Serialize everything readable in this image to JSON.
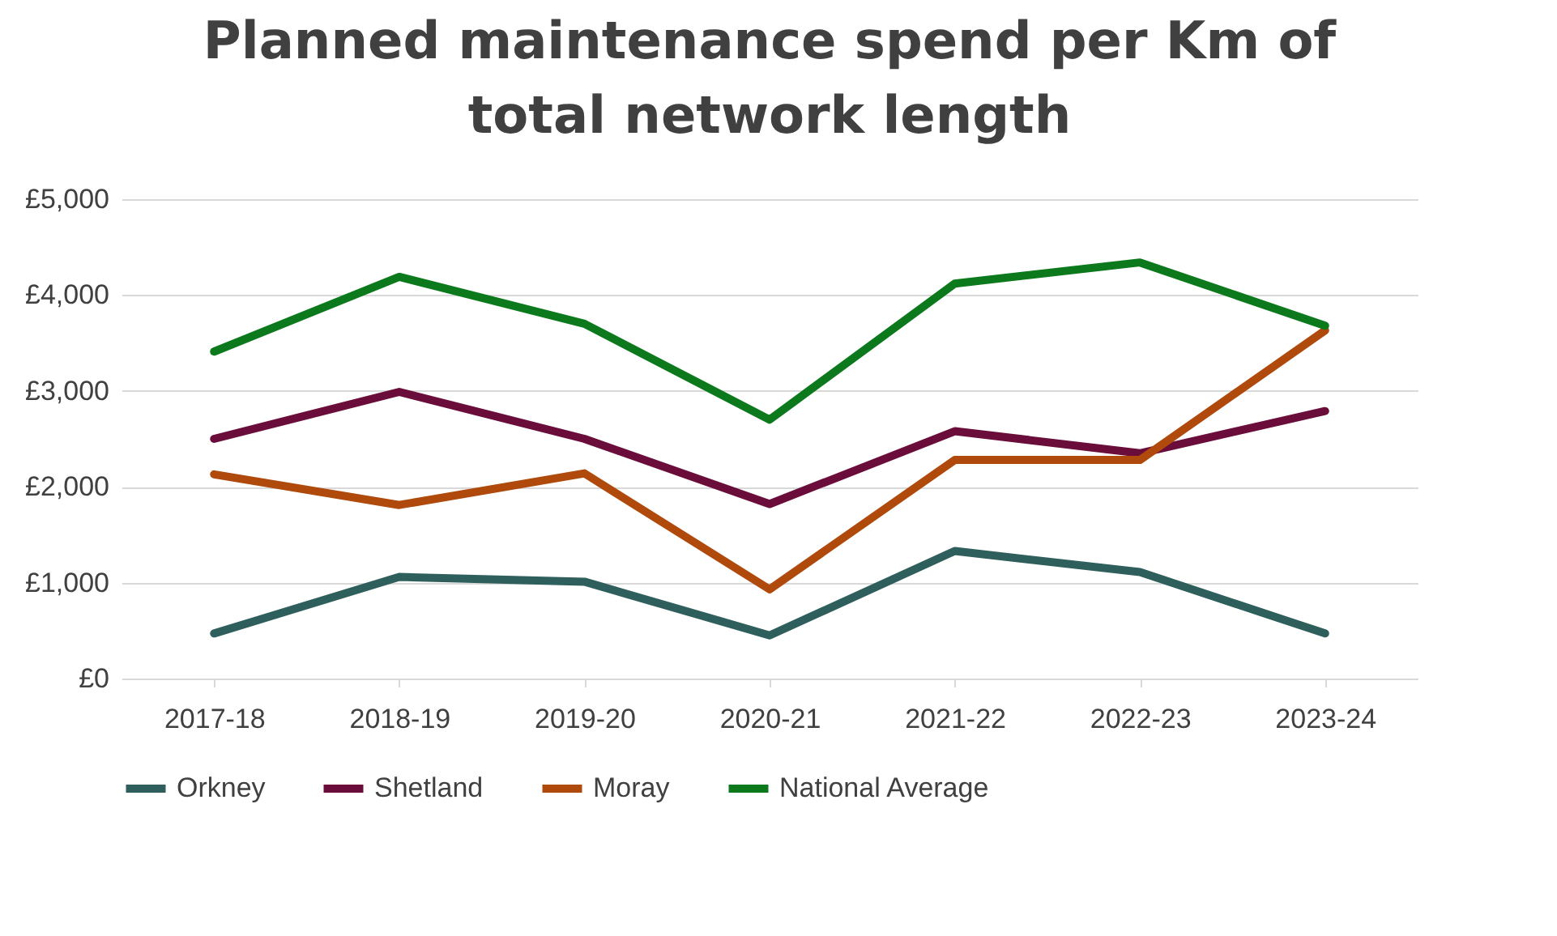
{
  "chart_data": {
    "type": "line",
    "title": "Planned maintenance spend per Km of total network length",
    "categories": [
      "2017-18",
      "2018-19",
      "2019-20",
      "2020-21",
      "2021-22",
      "2022-23",
      "2023-24"
    ],
    "series": [
      {
        "name": "Orkney",
        "color": "#2f5f5c",
        "values": [
          470,
          1060,
          1010,
          450,
          1330,
          1110,
          470
        ]
      },
      {
        "name": "Shetland",
        "color": "#6a0d3a",
        "values": [
          2500,
          2990,
          2500,
          1820,
          2580,
          2350,
          2790
        ]
      },
      {
        "name": "Moray",
        "color": "#b04a0c",
        "values": [
          2130,
          1810,
          2140,
          930,
          2280,
          2280,
          3630
        ]
      },
      {
        "name": "National Average",
        "color": "#0c7a1c",
        "values": [
          3410,
          4190,
          3700,
          2700,
          4120,
          4340,
          3680
        ]
      }
    ],
    "ylim": [
      0,
      5000
    ],
    "yticks": [
      {
        "value": 0,
        "label": "£0"
      },
      {
        "value": 1000,
        "label": "£1,000"
      },
      {
        "value": 2000,
        "label": "£2,000"
      },
      {
        "value": 3000,
        "label": "£3,000"
      },
      {
        "value": 4000,
        "label": "£4,000"
      },
      {
        "value": 5000,
        "label": "£5,000"
      }
    ],
    "grid": "y",
    "legend": "bottom",
    "marker": "none",
    "line_style": "solid"
  }
}
